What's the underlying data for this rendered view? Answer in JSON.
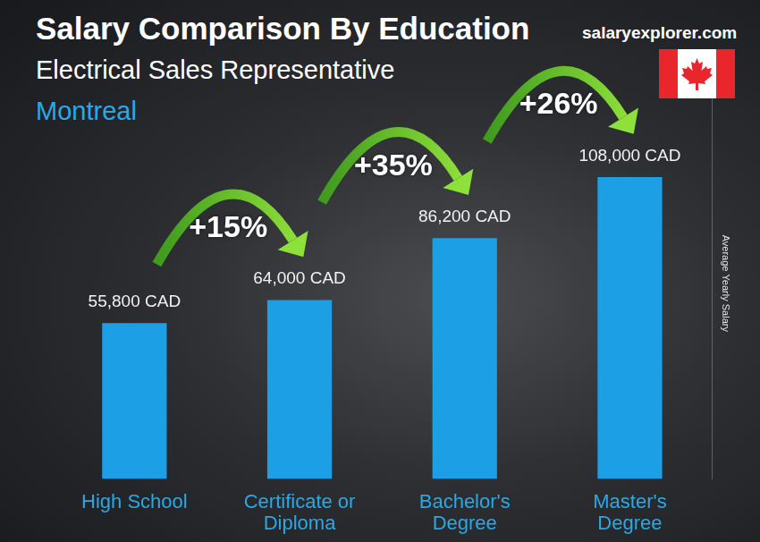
{
  "chart_data": {
    "type": "bar",
    "title": "Salary Comparison By Education",
    "subtitle": "Electrical Sales Representative",
    "location": "Montreal",
    "source": "salaryexplorer.com",
    "y_label": "Average Yearly Salary",
    "categories": [
      "High School",
      "Certificate or\nDiploma",
      "Bachelor's\nDegree",
      "Master's\nDegree"
    ],
    "values": [
      55800,
      64000,
      86200,
      108000
    ],
    "value_labels": [
      "55,800 CAD",
      "64,000 CAD",
      "86,200 CAD",
      "108,000 CAD"
    ],
    "data_labels": true,
    "color": "#1d9fe6",
    "ylim": [
      0,
      140000
    ],
    "tick_labels": "x",
    "grid": false,
    "annotations": [
      {
        "text": "+15%",
        "from": "High School",
        "to": "Certificate or\nDiploma"
      },
      {
        "text": "+35%",
        "from": "Certificate or\nDiploma",
        "to": "Bachelor's\nDegree"
      },
      {
        "text": "+26%",
        "from": "Bachelor's\nDegree",
        "to": "Master's\nDegree"
      }
    ]
  }
}
